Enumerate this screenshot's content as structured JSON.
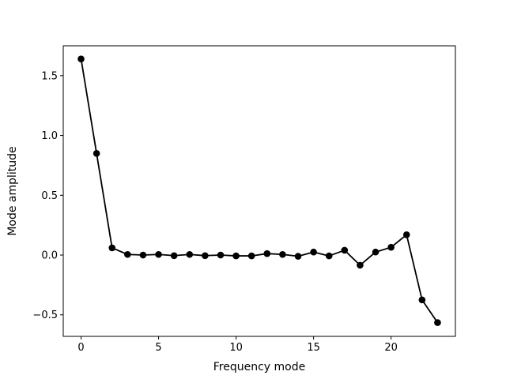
{
  "chart_data": {
    "type": "line",
    "title": "",
    "xlabel": "Frequency mode",
    "ylabel": "Mode amplitude",
    "xlim": [
      -1.15,
      24.15
    ],
    "ylim": [
      -0.68,
      1.75
    ],
    "xticks": [
      0,
      5,
      10,
      15,
      20
    ],
    "xtick_labels": [
      "0",
      "5",
      "10",
      "15",
      "20"
    ],
    "yticks": [
      -0.5,
      0.0,
      0.5,
      1.0,
      1.5
    ],
    "ytick_labels": [
      "−0.5",
      "0.0",
      "0.5",
      "1.0",
      "1.5"
    ],
    "grid": false,
    "legend": "none",
    "series": [
      {
        "color": "#000000",
        "marker": "circle",
        "x": [
          0,
          1,
          2,
          3,
          4,
          5,
          6,
          7,
          8,
          9,
          10,
          11,
          12,
          13,
          14,
          15,
          16,
          17,
          18,
          19,
          20,
          21,
          22,
          23
        ],
        "y": [
          1.64,
          0.85,
          0.06,
          0.005,
          0.0,
          0.005,
          -0.005,
          0.005,
          -0.005,
          0.0,
          -0.007,
          -0.007,
          0.012,
          0.005,
          -0.01,
          0.025,
          -0.007,
          0.04,
          -0.085,
          0.025,
          0.065,
          0.17,
          -0.375,
          -0.565
        ]
      }
    ]
  }
}
